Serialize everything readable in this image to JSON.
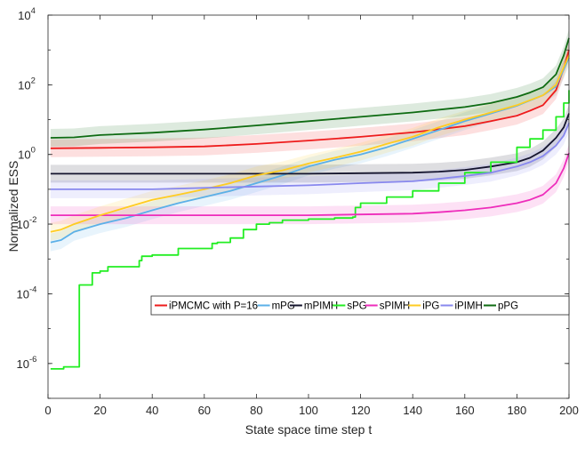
{
  "chart_data": {
    "type": "line",
    "title": "",
    "xlabel": "State space time step t",
    "ylabel": "Normalized ESS",
    "x_scale": "linear",
    "y_scale": "log",
    "xlim": [
      0,
      200
    ],
    "ylim": [
      1e-07,
      10000
    ],
    "x_ticks": [
      "0",
      "20",
      "40",
      "60",
      "80",
      "100",
      "120",
      "140",
      "160",
      "180",
      "200"
    ],
    "y_ticks": [
      {
        "base": "10",
        "exp": "-6",
        "value": 1e-06
      },
      {
        "base": "10",
        "exp": "-4",
        "value": 0.0001
      },
      {
        "base": "10",
        "exp": "-2",
        "value": 0.01
      },
      {
        "base": "10",
        "exp": "0",
        "value": 1
      },
      {
        "base": "10",
        "exp": "2",
        "value": 100
      },
      {
        "base": "10",
        "exp": "4",
        "value": 10000
      }
    ],
    "grid": false,
    "legend_position": "center-right",
    "series": [
      {
        "name": "iPMCMC with P=16",
        "color": "#ee1c1c",
        "band": true,
        "x": [
          1,
          20,
          40,
          60,
          80,
          100,
          120,
          140,
          160,
          170,
          180,
          185,
          190,
          195,
          198,
          200
        ],
        "y": [
          1.5,
          1.55,
          1.6,
          1.7,
          2.0,
          2.5,
          3.2,
          4.3,
          6.5,
          9,
          13,
          18,
          26,
          70,
          300,
          1000
        ]
      },
      {
        "name": "mPG",
        "color": "#5bb0e8",
        "band": true,
        "x": [
          1,
          5,
          10,
          20,
          30,
          40,
          50,
          60,
          70,
          80,
          90,
          100,
          110,
          120,
          130,
          140,
          150,
          160,
          170,
          180,
          190,
          195,
          200
        ],
        "y": [
          0.003,
          0.0035,
          0.006,
          0.01,
          0.015,
          0.025,
          0.04,
          0.06,
          0.09,
          0.15,
          0.25,
          0.45,
          0.7,
          1.0,
          1.6,
          2.8,
          5,
          9,
          15,
          25,
          50,
          90,
          600
        ]
      },
      {
        "name": "mPIMH",
        "color": "#14142d",
        "band": true,
        "x": [
          1,
          20,
          40,
          60,
          80,
          100,
          120,
          140,
          150,
          160,
          170,
          180,
          185,
          190,
          195,
          198,
          200
        ],
        "y": [
          0.28,
          0.28,
          0.28,
          0.28,
          0.28,
          0.28,
          0.29,
          0.3,
          0.32,
          0.36,
          0.45,
          0.6,
          0.8,
          1.3,
          3,
          6,
          15
        ]
      },
      {
        "name": "sPG",
        "color": "#22ee22",
        "band": false,
        "x": [
          1,
          6,
          11,
          12,
          16,
          17,
          20,
          23,
          30,
          35,
          36,
          40,
          50,
          60,
          63,
          65,
          70,
          75,
          80,
          85,
          90,
          100,
          110,
          117,
          118,
          120,
          130,
          140,
          150,
          160,
          170,
          180,
          185,
          190,
          195,
          198,
          200
        ],
        "y": [
          7e-07,
          8e-07,
          8e-07,
          0.00018,
          0.00018,
          0.0004,
          0.00045,
          0.0006,
          0.0006,
          0.0009,
          0.0012,
          0.0013,
          0.002,
          0.002,
          0.0028,
          0.003,
          0.004,
          0.007,
          0.01,
          0.011,
          0.013,
          0.014,
          0.015,
          0.016,
          0.03,
          0.04,
          0.06,
          0.09,
          0.15,
          0.3,
          0.6,
          1.6,
          2.8,
          5,
          12,
          30,
          70
        ]
      },
      {
        "name": "sPIMH",
        "color": "#ee2dbb",
        "band": true,
        "x": [
          1,
          20,
          40,
          60,
          80,
          100,
          120,
          140,
          150,
          160,
          170,
          180,
          185,
          190,
          195,
          198,
          200
        ],
        "y": [
          0.018,
          0.018,
          0.018,
          0.018,
          0.018,
          0.018,
          0.019,
          0.02,
          0.022,
          0.025,
          0.03,
          0.04,
          0.05,
          0.07,
          0.15,
          0.4,
          1.1
        ]
      },
      {
        "name": "iPG",
        "color": "#ffcc22",
        "band": true,
        "x": [
          1,
          5,
          10,
          20,
          30,
          40,
          50,
          60,
          70,
          80,
          90,
          100,
          110,
          120,
          130,
          140,
          150,
          160,
          170,
          180,
          190,
          195,
          200
        ],
        "y": [
          0.006,
          0.007,
          0.01,
          0.018,
          0.03,
          0.05,
          0.07,
          0.1,
          0.15,
          0.25,
          0.35,
          0.55,
          0.8,
          1.2,
          2.0,
          3.2,
          6,
          10,
          16,
          26,
          50,
          100,
          700
        ]
      },
      {
        "name": "iPIMH",
        "color": "#8888ee",
        "band": true,
        "x": [
          1,
          20,
          40,
          60,
          80,
          100,
          120,
          140,
          150,
          160,
          170,
          180,
          185,
          190,
          195,
          198,
          200
        ],
        "y": [
          0.1,
          0.1,
          0.1,
          0.11,
          0.12,
          0.13,
          0.15,
          0.17,
          0.2,
          0.24,
          0.3,
          0.45,
          0.6,
          0.9,
          1.8,
          3.5,
          8
        ]
      },
      {
        "name": "pPG",
        "color": "#0e6b12",
        "band": true,
        "x": [
          1,
          10,
          20,
          40,
          60,
          80,
          100,
          120,
          140,
          160,
          170,
          180,
          185,
          190,
          195,
          198,
          200
        ],
        "y": [
          3.0,
          3.1,
          3.6,
          4.2,
          5.2,
          6.8,
          9,
          12,
          16,
          23,
          30,
          45,
          60,
          85,
          200,
          700,
          2200
        ]
      }
    ]
  }
}
